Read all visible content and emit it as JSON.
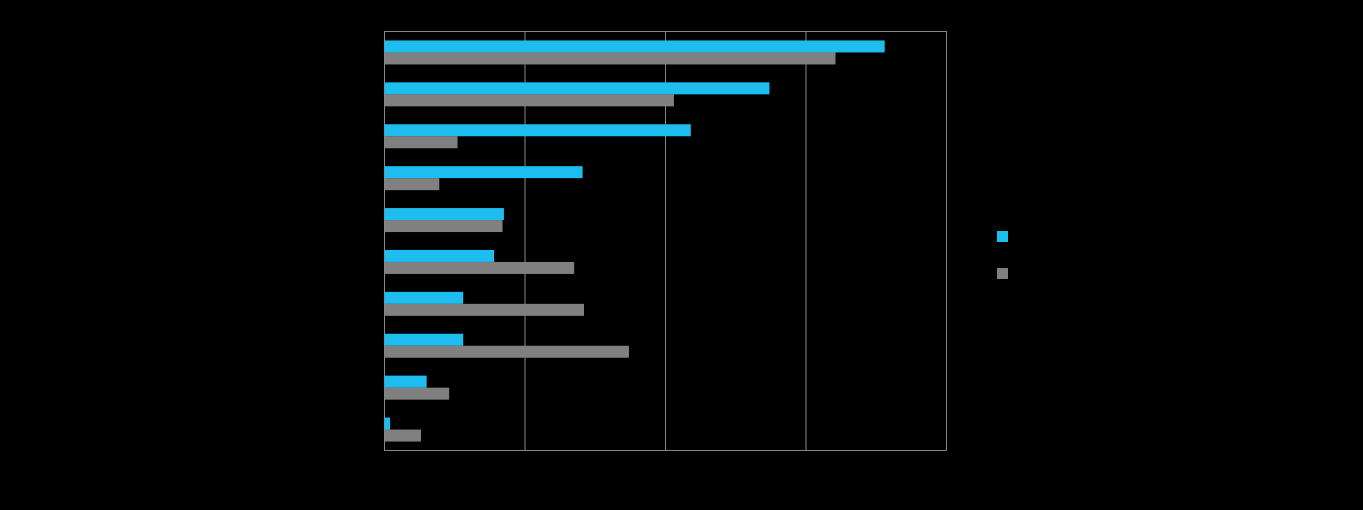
{
  "chart_data": {
    "type": "hbar",
    "categories": [
      null,
      null,
      null,
      null,
      null,
      null,
      null,
      null,
      null,
      null
    ],
    "series": [
      {
        "color": "#1ebdef",
        "values": [
          35.6,
          27.4,
          21.8,
          14.1,
          8.5,
          7.8,
          5.6,
          5.6,
          3.0,
          0.4
        ]
      },
      {
        "color": "#808080",
        "values": [
          32.1,
          20.6,
          5.2,
          3.9,
          8.4,
          13.5,
          14.2,
          17.4,
          4.6,
          2.6
        ]
      }
    ],
    "xlim": [
      0,
      40
    ],
    "xticks": [
      0,
      10,
      20,
      30,
      40
    ],
    "grid": true
  }
}
